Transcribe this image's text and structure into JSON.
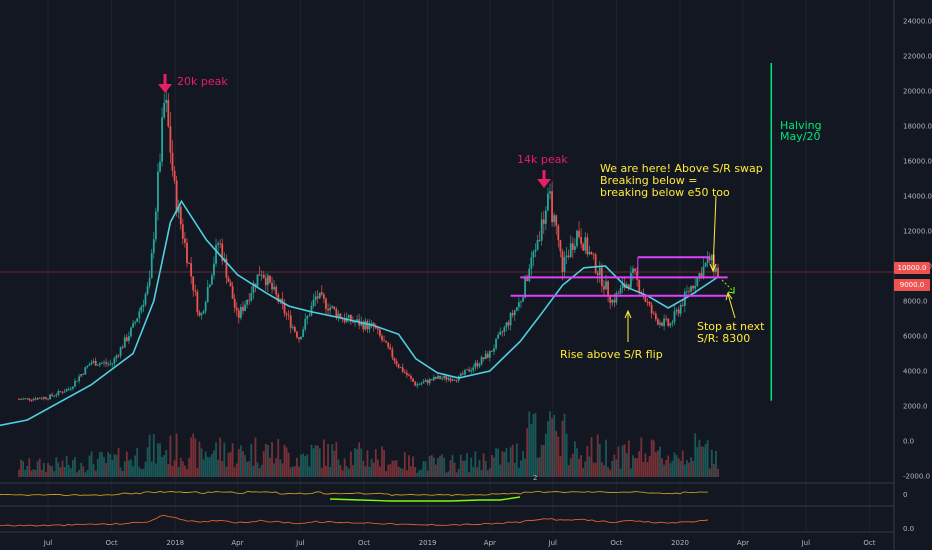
{
  "chart_data": {
    "type": "candlestick",
    "instrument": "",
    "price_axis": {
      "ticks": [
        "24000.0",
        "22000.0",
        "20000.0",
        "18000.0",
        "16000.0",
        "14000.0",
        "12000.0",
        "10000.0",
        "8000.0",
        "6000.0",
        "4000.0",
        "2000.0",
        "0.0",
        "-2000.0"
      ],
      "range": [
        -2000,
        24000
      ]
    },
    "time_axis": {
      "ticks": [
        "Jul",
        "Oct",
        "2018",
        "Apr",
        "Jul",
        "Oct",
        "2019",
        "Apr",
        "Jul",
        "Oct",
        "2020",
        "Apr",
        "Jul",
        "Oct"
      ]
    },
    "current_price_labels": [
      "10000.0",
      "9000.0"
    ],
    "indicator_axes": [
      "0",
      "0.0"
    ],
    "volume_label": "2",
    "series": [
      {
        "x": "2017-06-01",
        "y": 2400
      },
      {
        "x": "2017-07-01",
        "y": 2500
      },
      {
        "x": "2017-08-01",
        "y": 3000
      },
      {
        "x": "2017-09-01",
        "y": 4500
      },
      {
        "x": "2017-10-01",
        "y": 4400
      },
      {
        "x": "2017-11-01",
        "y": 6500
      },
      {
        "x": "2017-11-25",
        "y": 9000
      },
      {
        "x": "2017-12-17",
        "y": 19700
      },
      {
        "x": "2018-01-01",
        "y": 14000
      },
      {
        "x": "2018-02-06",
        "y": 6900
      },
      {
        "x": "2018-03-05",
        "y": 11500
      },
      {
        "x": "2018-04-01",
        "y": 7000
      },
      {
        "x": "2018-05-05",
        "y": 9800
      },
      {
        "x": "2018-06-29",
        "y": 5900
      },
      {
        "x": "2018-07-24",
        "y": 8300
      },
      {
        "x": "2018-09-01",
        "y": 7000
      },
      {
        "x": "2018-10-15",
        "y": 6500
      },
      {
        "x": "2018-11-20",
        "y": 4300
      },
      {
        "x": "2018-12-15",
        "y": 3200
      },
      {
        "x": "2019-01-15",
        "y": 3600
      },
      {
        "x": "2019-02-15",
        "y": 3600
      },
      {
        "x": "2019-04-01",
        "y": 5000
      },
      {
        "x": "2019-05-15",
        "y": 8000
      },
      {
        "x": "2019-06-26",
        "y": 13900
      },
      {
        "x": "2019-07-15",
        "y": 10000
      },
      {
        "x": "2019-08-06",
        "y": 12000
      },
      {
        "x": "2019-09-01",
        "y": 10000
      },
      {
        "x": "2019-09-25",
        "y": 8000
      },
      {
        "x": "2019-10-26",
        "y": 9500
      },
      {
        "x": "2019-11-25",
        "y": 7000
      },
      {
        "x": "2019-12-17",
        "y": 6600
      },
      {
        "x": "2020-01-15",
        "y": 8700
      },
      {
        "x": "2020-02-13",
        "y": 10400
      },
      {
        "x": "2020-02-26",
        "y": 9500
      }
    ],
    "ema50": [
      {
        "x": "2017-06-01",
        "y": 1200
      },
      {
        "x": "2017-09-01",
        "y": 3200
      },
      {
        "x": "2017-11-01",
        "y": 5000
      },
      {
        "x": "2017-12-01",
        "y": 8000
      },
      {
        "x": "2017-12-25",
        "y": 12500
      },
      {
        "x": "2018-01-10",
        "y": 13700
      },
      {
        "x": "2018-02-15",
        "y": 11500
      },
      {
        "x": "2018-04-01",
        "y": 9500
      },
      {
        "x": "2018-05-15",
        "y": 8400
      },
      {
        "x": "2018-06-15",
        "y": 7700
      },
      {
        "x": "2018-07-15",
        "y": 7400
      },
      {
        "x": "2018-09-01",
        "y": 7000
      },
      {
        "x": "2018-10-15",
        "y": 6600
      },
      {
        "x": "2018-11-20",
        "y": 6100
      },
      {
        "x": "2018-12-15",
        "y": 4700
      },
      {
        "x": "2019-01-15",
        "y": 3900
      },
      {
        "x": "2019-02-15",
        "y": 3600
      },
      {
        "x": "2019-04-01",
        "y": 4000
      },
      {
        "x": "2019-05-15",
        "y": 5700
      },
      {
        "x": "2019-06-15",
        "y": 7300
      },
      {
        "x": "2019-07-15",
        "y": 8900
      },
      {
        "x": "2019-08-15",
        "y": 9900
      },
      {
        "x": "2019-09-15",
        "y": 10000
      },
      {
        "x": "2019-10-15",
        "y": 8800
      },
      {
        "x": "2019-11-15",
        "y": 8300
      },
      {
        "x": "2019-12-15",
        "y": 7600
      },
      {
        "x": "2020-01-15",
        "y": 8300
      },
      {
        "x": "2020-02-26",
        "y": 9400
      }
    ],
    "sr_levels": [
      {
        "price": 10500,
        "from": "2019-11-01",
        "to": "2020-02-13",
        "label": ""
      },
      {
        "price": 9350,
        "from": "2019-05-15",
        "to": "2020-03-10",
        "label": ""
      },
      {
        "price": 8300,
        "from": "2019-05-01",
        "to": "2020-03-10",
        "label": ""
      }
    ],
    "halving_line": {
      "x": "2020-05-12",
      "from": 2300,
      "to": 21600
    },
    "annotations": [
      {
        "text": "20k peak",
        "color": "#e91e63"
      },
      {
        "text": "14k peak",
        "color": "#e91e63"
      },
      {
        "text": "We are here! Above S/R swap",
        "color": "#ffeb3b"
      },
      {
        "text": "Breaking below =",
        "color": "#ffeb3b"
      },
      {
        "text": "breaking below e50 too",
        "color": "#ffeb3b"
      },
      {
        "text": "Rise above S/R flip",
        "color": "#ffeb3b"
      },
      {
        "text": "Stop at next",
        "color": "#ffeb3b"
      },
      {
        "text": "S/R: 8300",
        "color": "#ffeb3b"
      },
      {
        "text": "Halving",
        "color": "#00e676"
      },
      {
        "text": "May/20",
        "color": "#00e676"
      }
    ],
    "colors": {
      "background": "#131722",
      "up": "#26a69a",
      "down": "#ef5350",
      "ema": "#4dd0e1",
      "sr": "#e040fb",
      "halving": "#00e676",
      "annotation": "#ffeb3b",
      "peak": "#e91e63",
      "indicator1": "#c99a1f",
      "indicator2": "#e0622a"
    }
  }
}
